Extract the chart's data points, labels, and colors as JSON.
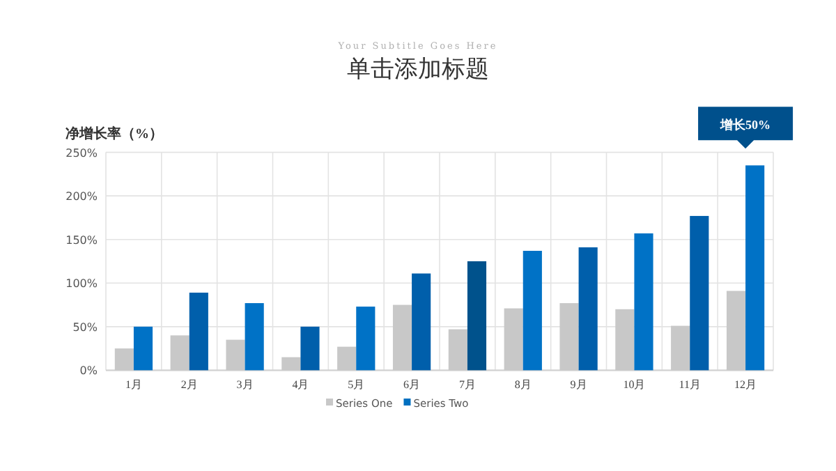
{
  "chart_data": {
    "type": "bar",
    "title": "单击添加标题",
    "subtitle": "Your Subtitle Goes Here",
    "ylabel": "净增长率（%）",
    "categories": [
      "1月",
      "2月",
      "3月",
      "4月",
      "5月",
      "6月",
      "7月",
      "8月",
      "9月",
      "10月",
      "11月",
      "12月"
    ],
    "series": [
      {
        "name": "Series One",
        "color": "#c8c8c8",
        "values": [
          25,
          40,
          35,
          15,
          27,
          75,
          47,
          71,
          77,
          70,
          51,
          91
        ]
      },
      {
        "name": "Series Two",
        "color": "#0070c0",
        "colors": [
          "#0072c6",
          "#005fab",
          "#0072c6",
          "#005fab",
          "#0072c6",
          "#005fab",
          "#00528c",
          "#0072c6",
          "#005fab",
          "#0072c6",
          "#005fab",
          "#0072c6"
        ],
        "values": [
          50,
          89,
          77,
          50,
          73,
          111,
          125,
          137,
          141,
          157,
          177,
          235
        ]
      }
    ],
    "ylim": [
      0,
      250
    ],
    "yticks": [
      {
        "value": 0,
        "label": "0%"
      },
      {
        "value": 50,
        "label": "50%"
      },
      {
        "value": 100,
        "label": "100%"
      },
      {
        "value": 150,
        "label": "150%"
      },
      {
        "value": 200,
        "label": "200%"
      },
      {
        "value": 250,
        "label": "250%"
      }
    ],
    "grid": true,
    "legend": "bottom",
    "annotations": [
      {
        "text": "增长50%",
        "x": "12月",
        "y": 235
      }
    ]
  }
}
